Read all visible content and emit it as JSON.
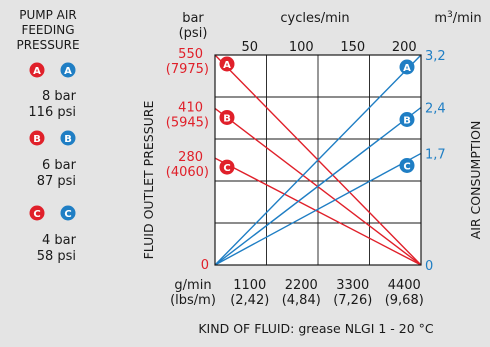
{
  "legend": {
    "heading": [
      "PUMP AIR",
      "FEEDING",
      "PRESSURE"
    ],
    "items": [
      {
        "letter": "A",
        "bar": "8 bar",
        "psi": "116 psi"
      },
      {
        "letter": "B",
        "bar": "6 bar",
        "psi": "87 psi"
      },
      {
        "letter": "C",
        "bar": "4 bar",
        "psi": "58 psi"
      }
    ]
  },
  "colors": {
    "pressure": "#e0202a",
    "air": "#1f7ec4",
    "text": "#1a1a1a",
    "background": "#e4e4e4",
    "plot": "#ffffff"
  },
  "chart_data": {
    "type": "line",
    "footer": "KIND OF FLUID: grease NLGI 1 - 20 °C",
    "axes": {
      "left": {
        "label": "FLUID OUTLET PRESSURE",
        "unit": "bar",
        "unit_alt": "(psi)",
        "ticks": [
          {
            "value": 550,
            "label": "550",
            "label_alt": "(7975)"
          },
          {
            "value": 410,
            "label": "410",
            "label_alt": "(5945)"
          },
          {
            "value": 280,
            "label": "280",
            "label_alt": "(4060)"
          },
          {
            "value": 0,
            "label": "0",
            "label_alt": ""
          }
        ],
        "range": [
          0,
          550
        ]
      },
      "right": {
        "label": "AIR CONSUMPTION",
        "unit": "m3/min",
        "ticks": [
          {
            "value": 3.2,
            "label": "3,2"
          },
          {
            "value": 2.4,
            "label": "2,4"
          },
          {
            "value": 1.7,
            "label": "1,7"
          },
          {
            "value": 0,
            "label": "0"
          }
        ],
        "range": [
          0,
          3.2
        ]
      },
      "top": {
        "label": "cycles/min",
        "ticks": [
          "50",
          "100",
          "150",
          "200"
        ],
        "range": [
          0,
          200
        ]
      },
      "bottom": {
        "unit": "g/min",
        "unit_alt": "(lbs/m)",
        "ticks": [
          {
            "label": "1100",
            "label_alt": "(2,42)"
          },
          {
            "label": "2200",
            "label_alt": "(4,84)"
          },
          {
            "label": "3300",
            "label_alt": "(7,26)"
          },
          {
            "label": "4400",
            "label_alt": "(9,68)"
          }
        ],
        "range": [
          0,
          4400
        ]
      }
    },
    "series": [
      {
        "name": "A",
        "axis": "left",
        "color": "#e0202a",
        "points": [
          [
            0,
            550
          ],
          [
            200,
            0
          ]
        ]
      },
      {
        "name": "B",
        "axis": "left",
        "color": "#e0202a",
        "points": [
          [
            0,
            410
          ],
          [
            200,
            0
          ]
        ]
      },
      {
        "name": "C",
        "axis": "left",
        "color": "#e0202a",
        "points": [
          [
            0,
            280
          ],
          [
            200,
            0
          ]
        ]
      },
      {
        "name": "A",
        "axis": "right",
        "color": "#1f7ec4",
        "points": [
          [
            0,
            0
          ],
          [
            200,
            3.2
          ]
        ]
      },
      {
        "name": "B",
        "axis": "right",
        "color": "#1f7ec4",
        "points": [
          [
            0,
            0
          ],
          [
            200,
            2.4
          ]
        ]
      },
      {
        "name": "C",
        "axis": "right",
        "color": "#1f7ec4",
        "points": [
          [
            0,
            0
          ],
          [
            200,
            1.7
          ]
        ]
      }
    ],
    "grid": true
  }
}
